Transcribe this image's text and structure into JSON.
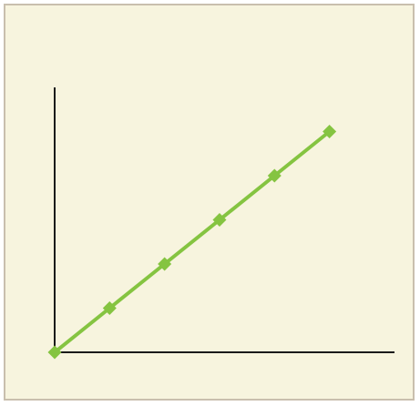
{
  "chart_data": {
    "type": "line",
    "title": "",
    "xlabel": "",
    "ylabel": "",
    "x": [
      0,
      1,
      2,
      3,
      4,
      5
    ],
    "series": [
      {
        "values": [
          0,
          1,
          2,
          3,
          4,
          5
        ]
      }
    ],
    "xlim": [
      0,
      6.2
    ],
    "ylim": [
      0,
      6
    ],
    "grid": false,
    "legend": "none"
  },
  "colors": {
    "background": "#f7f4de",
    "border": "#c9bfae",
    "axis": "#1a1a1a",
    "series": "#85c441"
  },
  "marker": "diamond-icon"
}
